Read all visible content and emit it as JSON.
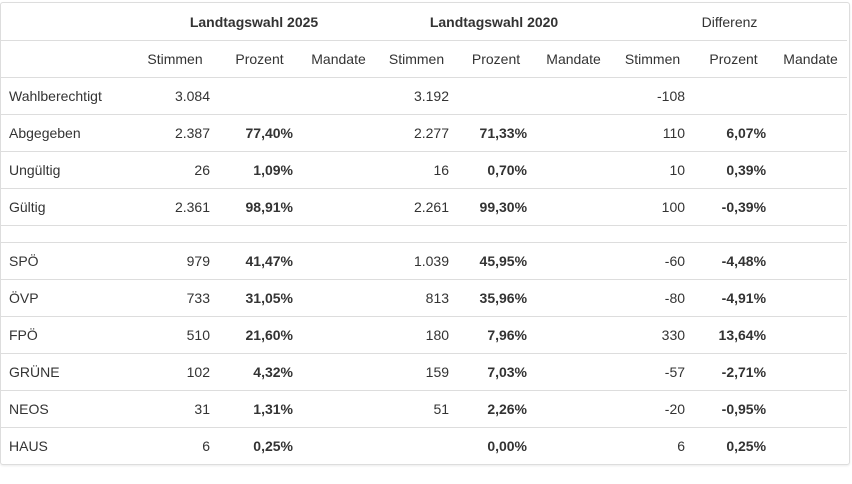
{
  "headers": {
    "group_2025": "Landtagswahl 2025",
    "group_2020": "Landtagswahl 2020",
    "group_diff": "Differenz",
    "stimmen": "Stimmen",
    "prozent": "Prozent",
    "mandate": "Mandate"
  },
  "summary_rows": [
    {
      "label": "Wahlberechtigt",
      "s2025": "3.084",
      "p2025": "",
      "s2020": "3.192",
      "p2020": "",
      "sdiff": "-108",
      "pdiff": ""
    },
    {
      "label": "Abgegeben",
      "s2025": "2.387",
      "p2025": "77,40%",
      "s2020": "2.277",
      "p2020": "71,33%",
      "sdiff": "110",
      "pdiff": "6,07%"
    },
    {
      "label": "Ungültig",
      "s2025": "26",
      "p2025": "1,09%",
      "s2020": "16",
      "p2020": "0,70%",
      "sdiff": "10",
      "pdiff": "0,39%"
    },
    {
      "label": "Gültig",
      "s2025": "2.361",
      "p2025": "98,91%",
      "s2020": "2.261",
      "p2020": "99,30%",
      "sdiff": "100",
      "pdiff": "-0,39%"
    }
  ],
  "party_rows": [
    {
      "label": "SPÖ",
      "s2025": "979",
      "p2025": "41,47%",
      "s2020": "1.039",
      "p2020": "45,95%",
      "sdiff": "-60",
      "pdiff": "-4,48%"
    },
    {
      "label": "ÖVP",
      "s2025": "733",
      "p2025": "31,05%",
      "s2020": "813",
      "p2020": "35,96%",
      "sdiff": "-80",
      "pdiff": "-4,91%"
    },
    {
      "label": "FPÖ",
      "s2025": "510",
      "p2025": "21,60%",
      "s2020": "180",
      "p2020": "7,96%",
      "sdiff": "330",
      "pdiff": "13,64%"
    },
    {
      "label": "GRÜNE",
      "s2025": "102",
      "p2025": "4,32%",
      "s2020": "159",
      "p2020": "7,03%",
      "sdiff": "-57",
      "pdiff": "-2,71%"
    },
    {
      "label": "NEOS",
      "s2025": "31",
      "p2025": "1,31%",
      "s2020": "51",
      "p2020": "2,26%",
      "sdiff": "-20",
      "pdiff": "-0,95%"
    },
    {
      "label": "HAUS",
      "s2025": "6",
      "p2025": "0,25%",
      "s2020": "",
      "p2020": "0,00%",
      "sdiff": "6",
      "pdiff": "0,25%"
    }
  ]
}
